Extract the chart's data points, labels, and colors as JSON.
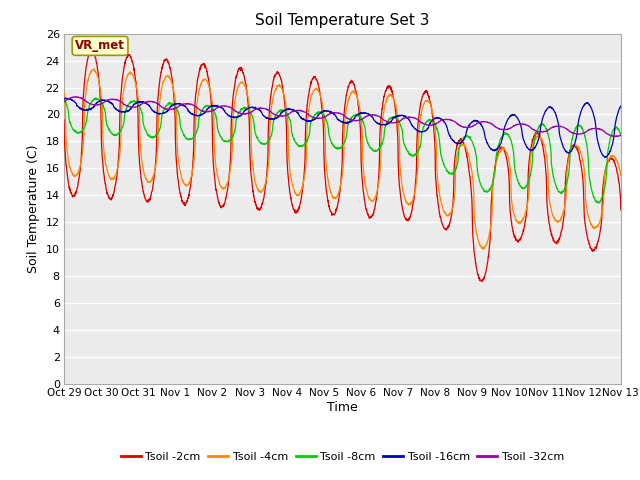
{
  "title": "Soil Temperature Set 3",
  "xlabel": "Time",
  "ylabel": "Soil Temperature (C)",
  "ylim": [
    0,
    26
  ],
  "yticks": [
    0,
    2,
    4,
    6,
    8,
    10,
    12,
    14,
    16,
    18,
    20,
    22,
    24,
    26
  ],
  "xtick_labels": [
    "Oct 29",
    "Oct 30",
    "Oct 31",
    "Nov 1",
    "Nov 2",
    "Nov 3",
    "Nov 4",
    "Nov 5",
    "Nov 6",
    "Nov 7",
    "Nov 8",
    "Nov 9",
    "Nov 10",
    "Nov 11",
    "Nov 12",
    "Nov 13"
  ],
  "colors": {
    "Tsoil -2cm": "#dd0000",
    "Tsoil -4cm": "#ff8800",
    "Tsoil -8cm": "#00cc00",
    "Tsoil -16cm": "#0000bb",
    "Tsoil -32cm": "#9900aa"
  },
  "legend_labels": [
    "Tsoil -2cm",
    "Tsoil -4cm",
    "Tsoil -8cm",
    "Tsoil -16cm",
    "Tsoil -32cm"
  ],
  "plot_bg_color": "#ebebeb",
  "annotation_text": "VR_met",
  "annotation_box_color": "#ffffcc",
  "annotation_box_edge": "#999900"
}
